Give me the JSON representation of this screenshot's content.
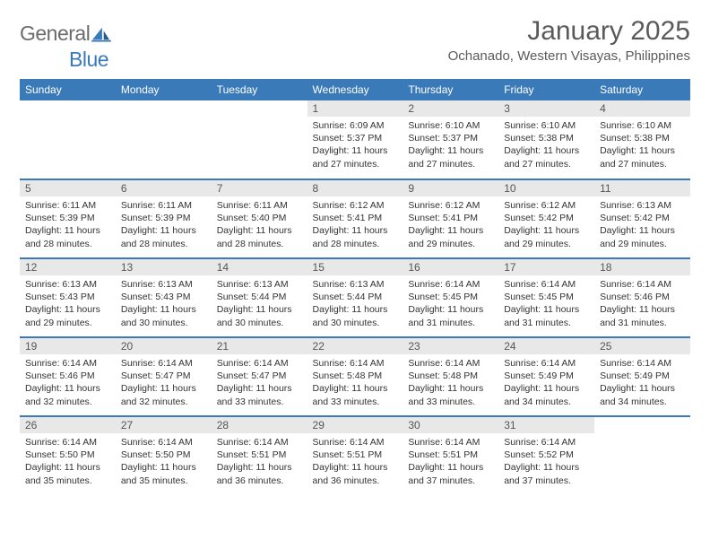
{
  "logo": {
    "text1": "General",
    "text2": "Blue"
  },
  "title": "January 2025",
  "location": "Ochanado, Western Visayas, Philippines",
  "colors": {
    "header_bg": "#3a7ab8",
    "header_fg": "#ffffff",
    "daynum_bg": "#e8e8e8",
    "border": "#3a7ab8",
    "text": "#333333",
    "logo_gray": "#6b6b6b",
    "logo_blue": "#3a7ab8"
  },
  "typography": {
    "title_fontsize": 30,
    "location_fontsize": 15,
    "header_fontsize": 12,
    "daynum_fontsize": 12,
    "cell_fontsize": 10.5
  },
  "weekdays": [
    "Sunday",
    "Monday",
    "Tuesday",
    "Wednesday",
    "Thursday",
    "Friday",
    "Saturday"
  ],
  "weeks": [
    [
      null,
      null,
      null,
      {
        "n": "1",
        "sr": "6:09 AM",
        "ss": "5:37 PM",
        "dl": "11 hours and 27 minutes."
      },
      {
        "n": "2",
        "sr": "6:10 AM",
        "ss": "5:37 PM",
        "dl": "11 hours and 27 minutes."
      },
      {
        "n": "3",
        "sr": "6:10 AM",
        "ss": "5:38 PM",
        "dl": "11 hours and 27 minutes."
      },
      {
        "n": "4",
        "sr": "6:10 AM",
        "ss": "5:38 PM",
        "dl": "11 hours and 27 minutes."
      }
    ],
    [
      {
        "n": "5",
        "sr": "6:11 AM",
        "ss": "5:39 PM",
        "dl": "11 hours and 28 minutes."
      },
      {
        "n": "6",
        "sr": "6:11 AM",
        "ss": "5:39 PM",
        "dl": "11 hours and 28 minutes."
      },
      {
        "n": "7",
        "sr": "6:11 AM",
        "ss": "5:40 PM",
        "dl": "11 hours and 28 minutes."
      },
      {
        "n": "8",
        "sr": "6:12 AM",
        "ss": "5:41 PM",
        "dl": "11 hours and 28 minutes."
      },
      {
        "n": "9",
        "sr": "6:12 AM",
        "ss": "5:41 PM",
        "dl": "11 hours and 29 minutes."
      },
      {
        "n": "10",
        "sr": "6:12 AM",
        "ss": "5:42 PM",
        "dl": "11 hours and 29 minutes."
      },
      {
        "n": "11",
        "sr": "6:13 AM",
        "ss": "5:42 PM",
        "dl": "11 hours and 29 minutes."
      }
    ],
    [
      {
        "n": "12",
        "sr": "6:13 AM",
        "ss": "5:43 PM",
        "dl": "11 hours and 29 minutes."
      },
      {
        "n": "13",
        "sr": "6:13 AM",
        "ss": "5:43 PM",
        "dl": "11 hours and 30 minutes."
      },
      {
        "n": "14",
        "sr": "6:13 AM",
        "ss": "5:44 PM",
        "dl": "11 hours and 30 minutes."
      },
      {
        "n": "15",
        "sr": "6:13 AM",
        "ss": "5:44 PM",
        "dl": "11 hours and 30 minutes."
      },
      {
        "n": "16",
        "sr": "6:14 AM",
        "ss": "5:45 PM",
        "dl": "11 hours and 31 minutes."
      },
      {
        "n": "17",
        "sr": "6:14 AM",
        "ss": "5:45 PM",
        "dl": "11 hours and 31 minutes."
      },
      {
        "n": "18",
        "sr": "6:14 AM",
        "ss": "5:46 PM",
        "dl": "11 hours and 31 minutes."
      }
    ],
    [
      {
        "n": "19",
        "sr": "6:14 AM",
        "ss": "5:46 PM",
        "dl": "11 hours and 32 minutes."
      },
      {
        "n": "20",
        "sr": "6:14 AM",
        "ss": "5:47 PM",
        "dl": "11 hours and 32 minutes."
      },
      {
        "n": "21",
        "sr": "6:14 AM",
        "ss": "5:47 PM",
        "dl": "11 hours and 33 minutes."
      },
      {
        "n": "22",
        "sr": "6:14 AM",
        "ss": "5:48 PM",
        "dl": "11 hours and 33 minutes."
      },
      {
        "n": "23",
        "sr": "6:14 AM",
        "ss": "5:48 PM",
        "dl": "11 hours and 33 minutes."
      },
      {
        "n": "24",
        "sr": "6:14 AM",
        "ss": "5:49 PM",
        "dl": "11 hours and 34 minutes."
      },
      {
        "n": "25",
        "sr": "6:14 AM",
        "ss": "5:49 PM",
        "dl": "11 hours and 34 minutes."
      }
    ],
    [
      {
        "n": "26",
        "sr": "6:14 AM",
        "ss": "5:50 PM",
        "dl": "11 hours and 35 minutes."
      },
      {
        "n": "27",
        "sr": "6:14 AM",
        "ss": "5:50 PM",
        "dl": "11 hours and 35 minutes."
      },
      {
        "n": "28",
        "sr": "6:14 AM",
        "ss": "5:51 PM",
        "dl": "11 hours and 36 minutes."
      },
      {
        "n": "29",
        "sr": "6:14 AM",
        "ss": "5:51 PM",
        "dl": "11 hours and 36 minutes."
      },
      {
        "n": "30",
        "sr": "6:14 AM",
        "ss": "5:51 PM",
        "dl": "11 hours and 37 minutes."
      },
      {
        "n": "31",
        "sr": "6:14 AM",
        "ss": "5:52 PM",
        "dl": "11 hours and 37 minutes."
      },
      null
    ]
  ],
  "labels": {
    "sunrise": "Sunrise:",
    "sunset": "Sunset:",
    "daylight": "Daylight:"
  }
}
